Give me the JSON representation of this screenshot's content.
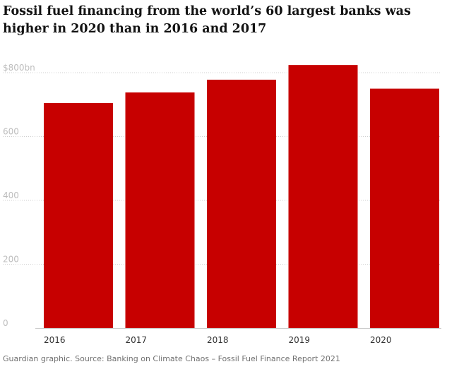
{
  "chart_data": {
    "type": "bar",
    "title": "Fossil fuel financing from the world’s 60 largest banks was higher in 2020 than in 2016 and 2017",
    "categories": [
      "2016",
      "2017",
      "2018",
      "2019",
      "2020"
    ],
    "values": [
      705,
      738,
      778,
      824,
      750
    ],
    "ylim": [
      0,
      800
    ],
    "yticks": [
      0,
      200,
      400,
      600,
      800
    ],
    "ytick_labels": [
      "0",
      "200",
      "400",
      "600",
      "$800bn"
    ],
    "grid": true,
    "xlabel": "",
    "ylabel": "",
    "bar_color": "#c70000",
    "source": "Guardian graphic. Source: Banking on Climate Chaos – Fossil Fuel Finance Report 2021"
  }
}
